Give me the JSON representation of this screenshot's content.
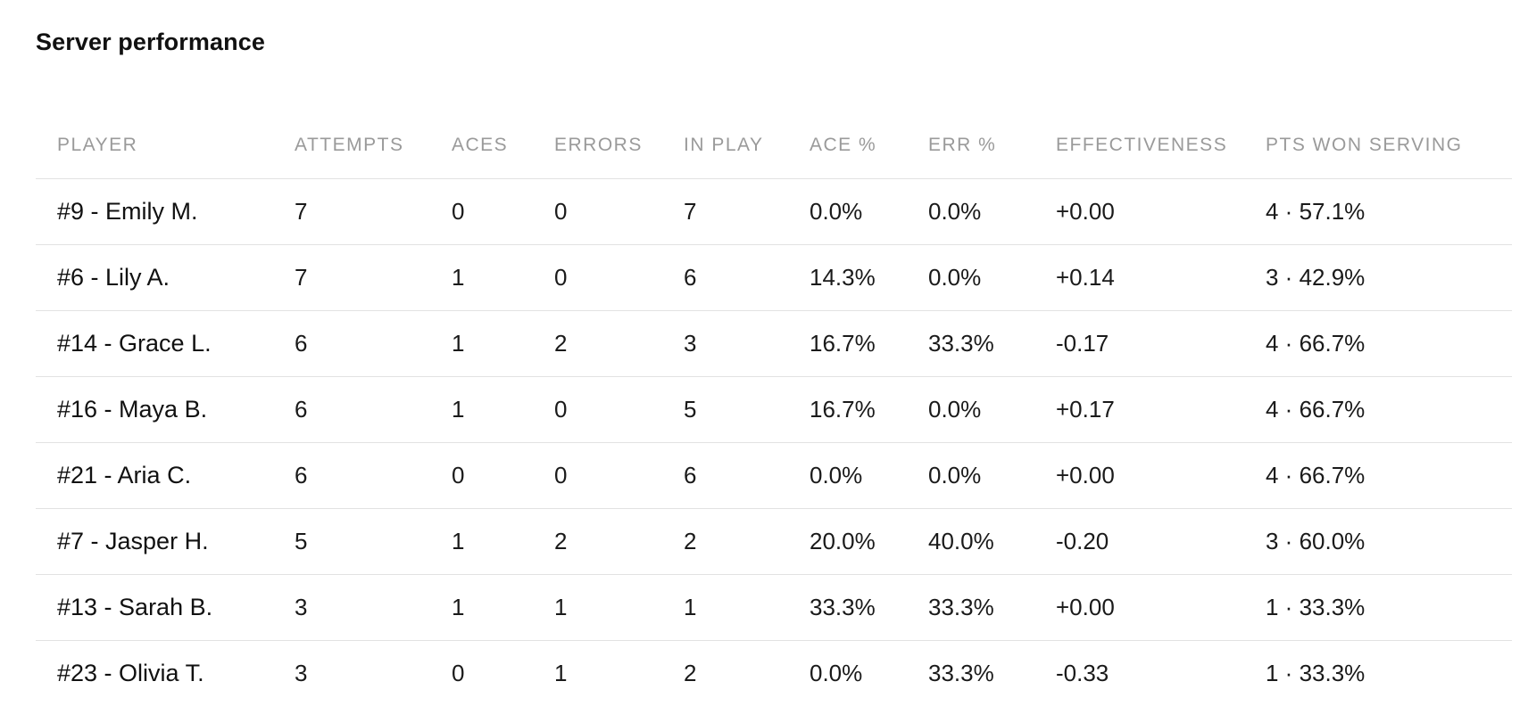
{
  "title": "Server performance",
  "columns": [
    "PLAYER",
    "ATTEMPTS",
    "ACES",
    "ERRORS",
    "IN PLAY",
    "ACE %",
    "ERR %",
    "EFFECTIVENESS",
    "PTS WON SERVING"
  ],
  "rows": [
    {
      "player": "#9 - Emily M.",
      "attempts": "7",
      "aces": "0",
      "errors": "0",
      "in_play": "7",
      "ace_pct": "0.0%",
      "err_pct": "0.0%",
      "effectiveness": "+0.00",
      "eff_sign": "pos",
      "pts_won": "4 · 57.1%"
    },
    {
      "player": "#6 - Lily A.",
      "attempts": "7",
      "aces": "1",
      "errors": "0",
      "in_play": "6",
      "ace_pct": "14.3%",
      "err_pct": "0.0%",
      "effectiveness": "+0.14",
      "eff_sign": "pos",
      "pts_won": "3 · 42.9%"
    },
    {
      "player": "#14 - Grace L.",
      "attempts": "6",
      "aces": "1",
      "errors": "2",
      "in_play": "3",
      "ace_pct": "16.7%",
      "err_pct": "33.3%",
      "effectiveness": "-0.17",
      "eff_sign": "neg",
      "pts_won": "4 · 66.7%"
    },
    {
      "player": "#16 - Maya B.",
      "attempts": "6",
      "aces": "1",
      "errors": "0",
      "in_play": "5",
      "ace_pct": "16.7%",
      "err_pct": "0.0%",
      "effectiveness": "+0.17",
      "eff_sign": "pos",
      "pts_won": "4 · 66.7%"
    },
    {
      "player": "#21 - Aria C.",
      "attempts": "6",
      "aces": "0",
      "errors": "0",
      "in_play": "6",
      "ace_pct": "0.0%",
      "err_pct": "0.0%",
      "effectiveness": "+0.00",
      "eff_sign": "pos",
      "pts_won": "4 · 66.7%"
    },
    {
      "player": "#7 - Jasper H.",
      "attempts": "5",
      "aces": "1",
      "errors": "2",
      "in_play": "2",
      "ace_pct": "20.0%",
      "err_pct": "40.0%",
      "effectiveness": "-0.20",
      "eff_sign": "neg",
      "pts_won": "3 · 60.0%"
    },
    {
      "player": "#13 - Sarah B.",
      "attempts": "3",
      "aces": "1",
      "errors": "1",
      "in_play": "1",
      "ace_pct": "33.3%",
      "err_pct": "33.3%",
      "effectiveness": "+0.00",
      "eff_sign": "pos",
      "pts_won": "1 · 33.3%"
    },
    {
      "player": "#23 - Olivia T.",
      "attempts": "3",
      "aces": "0",
      "errors": "1",
      "in_play": "2",
      "ace_pct": "0.0%",
      "err_pct": "33.3%",
      "effectiveness": "-0.33",
      "eff_sign": "neg",
      "pts_won": "1 · 33.3%"
    }
  ],
  "colors": {
    "positive": "#1d9a5c",
    "negative": "#e0234e",
    "header_text": "#9a9a9a",
    "divider": "#e2e2e2"
  }
}
